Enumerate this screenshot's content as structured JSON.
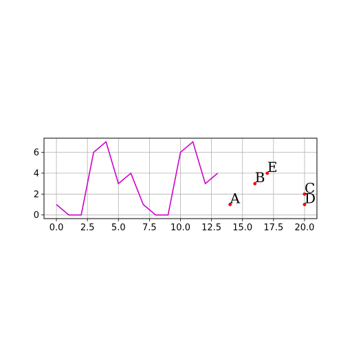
{
  "chart_data": {
    "type": "line",
    "title": "",
    "xlabel": "",
    "ylabel": "",
    "xlim": [
      -1,
      21
    ],
    "ylim": [
      -0.35,
      7.35
    ],
    "grid": true,
    "x_ticks": [
      0,
      2.5,
      5,
      7.5,
      10,
      12.5,
      15,
      17.5,
      20
    ],
    "x_tick_labels": [
      "0.0",
      "2.5",
      "5.0",
      "7.5",
      "10.0",
      "12.5",
      "15.0",
      "17.5",
      "20.0"
    ],
    "y_ticks": [
      0,
      2,
      4,
      6
    ],
    "y_tick_labels": [
      "0",
      "2",
      "4",
      "6"
    ],
    "series": [
      {
        "x": [
          0,
          1,
          2,
          3,
          4,
          5,
          6,
          7,
          8,
          9,
          10,
          11,
          12,
          13
        ],
        "y": [
          1,
          0,
          0,
          6,
          7,
          3,
          4,
          1,
          0,
          0,
          6,
          7,
          3,
          4
        ],
        "color": "#cc00cc"
      }
    ],
    "points": [
      {
        "label": "A",
        "x": 14,
        "y": 1
      },
      {
        "label": "B",
        "x": 16,
        "y": 3
      },
      {
        "label": "C",
        "x": 20,
        "y": 2
      },
      {
        "label": "D",
        "x": 20,
        "y": 1
      },
      {
        "label": "E",
        "x": 17,
        "y": 4
      }
    ],
    "point_color": "#ff0000"
  }
}
